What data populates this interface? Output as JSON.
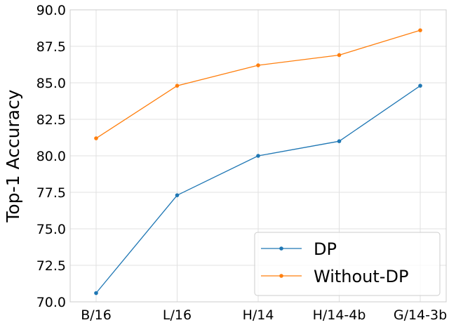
{
  "chart_data": {
    "type": "line",
    "title": "",
    "xlabel": "",
    "ylabel": "Top-1 Accuracy",
    "categories": [
      "B/16",
      "L/16",
      "H/14",
      "H/14-4b",
      "G/14-3b"
    ],
    "ylim": [
      70.0,
      90.0
    ],
    "yticks": [
      "70.0",
      "72.5",
      "75.0",
      "77.5",
      "80.0",
      "82.5",
      "85.0",
      "87.5",
      "90.0"
    ],
    "grid": true,
    "legend_position": "lower-right",
    "series": [
      {
        "name": "DP",
        "color": "#1f77b4",
        "values": [
          70.6,
          77.3,
          80.0,
          81.0,
          84.8
        ]
      },
      {
        "name": "Without-DP",
        "color": "#ff7f0e",
        "values": [
          81.2,
          84.8,
          86.2,
          86.9,
          88.6
        ]
      }
    ]
  }
}
